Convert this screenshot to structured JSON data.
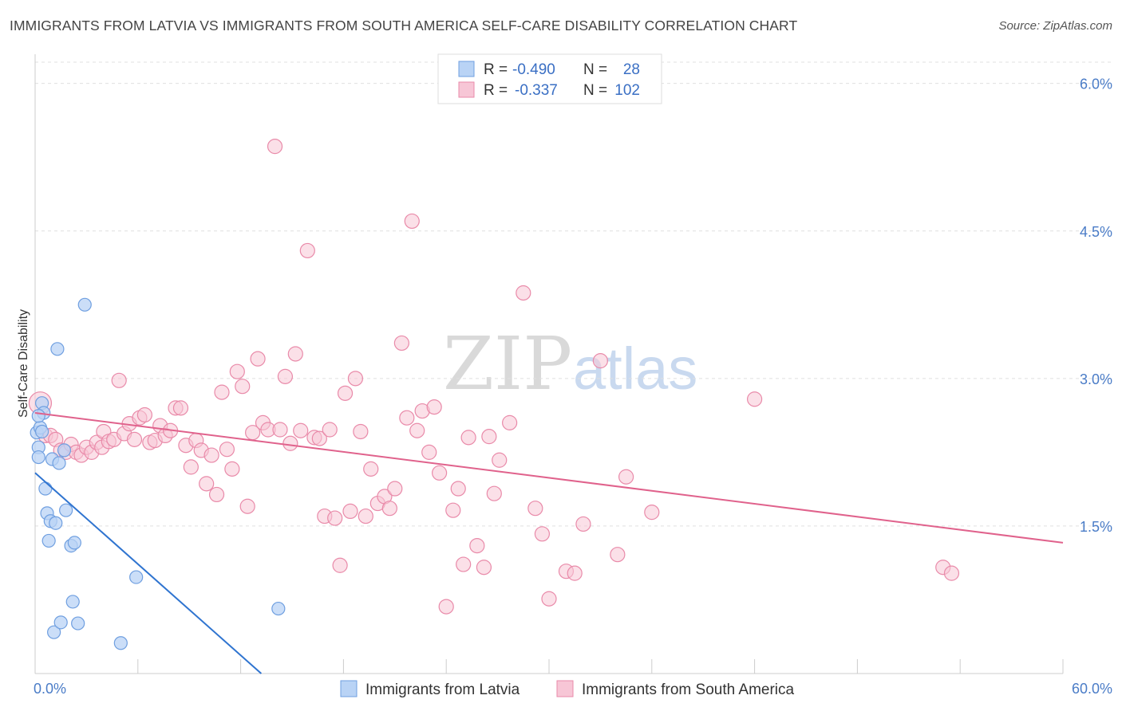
{
  "header": {
    "title": "IMMIGRANTS FROM LATVIA VS IMMIGRANTS FROM SOUTH AMERICA SELF-CARE DISABILITY CORRELATION CHART",
    "source": "Source: ZipAtlas.com"
  },
  "watermark": {
    "zip": "ZIP",
    "atlas": "atlas"
  },
  "colors": {
    "latvia_fill": "#b9d3f5",
    "latvia_stroke": "#6f9fe0",
    "latvia_line": "#2f74d0",
    "south_america_fill": "#f7c6d6",
    "south_america_stroke": "#e98aa9",
    "south_america_line": "#e0628c",
    "tick_label": "#4a7cc7",
    "grid": "#e0e0e0"
  },
  "stats_legend": {
    "rows": [
      {
        "r_label": "R = ",
        "r_value": "-0.490",
        "n_label": "N = ",
        "n_value": "28"
      },
      {
        "r_label": "R = ",
        "r_value": "-0.337",
        "n_label": "N = ",
        "n_value": "102"
      }
    ]
  },
  "chart_data": {
    "type": "scatter",
    "title": "IMMIGRANTS FROM LATVIA VS IMMIGRANTS FROM SOUTH AMERICA SELF-CARE DISABILITY CORRELATION CHART",
    "xlabel": "",
    "ylabel": "Self-Care Disability",
    "xlim": [
      0,
      60
    ],
    "ylim": [
      0,
      6.2
    ],
    "x_tick_labels": {
      "min": "0.0%",
      "max": "60.0%"
    },
    "x_minor_ticks": [
      6,
      12,
      18,
      24,
      30,
      36,
      42,
      48,
      54,
      60
    ],
    "y_ticks": [
      1.5,
      3.0,
      4.5,
      6.0
    ],
    "y_tick_labels": [
      "1.5%",
      "3.0%",
      "4.5%",
      "6.0%"
    ],
    "grid": true,
    "legend_position": "bottom",
    "series": [
      {
        "name": "Immigrants from Latvia",
        "color": "#6f9fe0",
        "trendline": {
          "x": [
            0,
            13.2
          ],
          "y": [
            2.04,
            0.0
          ]
        },
        "points": [
          [
            0.1,
            2.45
          ],
          [
            0.2,
            2.3
          ],
          [
            0.2,
            2.2
          ],
          [
            0.3,
            2.5
          ],
          [
            0.4,
            2.46
          ],
          [
            0.4,
            2.75
          ],
          [
            0.5,
            2.65
          ],
          [
            0.6,
            1.88
          ],
          [
            0.7,
            1.63
          ],
          [
            0.8,
            1.35
          ],
          [
            0.9,
            1.55
          ],
          [
            1.0,
            2.18
          ],
          [
            1.1,
            0.42
          ],
          [
            1.2,
            1.53
          ],
          [
            1.3,
            3.3
          ],
          [
            1.4,
            2.14
          ],
          [
            1.5,
            0.52
          ],
          [
            1.7,
            2.27
          ],
          [
            1.8,
            1.66
          ],
          [
            2.1,
            1.3
          ],
          [
            2.2,
            0.73
          ],
          [
            2.3,
            1.33
          ],
          [
            2.5,
            0.51
          ],
          [
            2.9,
            3.75
          ],
          [
            5.0,
            0.31
          ],
          [
            5.9,
            0.98
          ],
          [
            14.2,
            0.66
          ],
          [
            0.2,
            2.62
          ]
        ]
      },
      {
        "name": "Immigrants from South America",
        "color": "#e98aa9",
        "trendline": {
          "x": [
            0,
            60
          ],
          "y": [
            2.65,
            1.33
          ]
        },
        "points": [
          [
            0.3,
            2.75
          ],
          [
            0.6,
            2.42
          ],
          [
            0.9,
            2.42
          ],
          [
            1.2,
            2.38
          ],
          [
            1.5,
            2.27
          ],
          [
            1.8,
            2.25
          ],
          [
            2.1,
            2.33
          ],
          [
            2.4,
            2.25
          ],
          [
            2.7,
            2.22
          ],
          [
            3.0,
            2.3
          ],
          [
            3.3,
            2.25
          ],
          [
            3.6,
            2.35
          ],
          [
            3.9,
            2.3
          ],
          [
            4.0,
            2.46
          ],
          [
            4.3,
            2.36
          ],
          [
            4.6,
            2.38
          ],
          [
            4.9,
            2.98
          ],
          [
            5.2,
            2.44
          ],
          [
            5.5,
            2.54
          ],
          [
            5.8,
            2.38
          ],
          [
            6.1,
            2.6
          ],
          [
            6.4,
            2.63
          ],
          [
            6.7,
            2.35
          ],
          [
            7.0,
            2.37
          ],
          [
            7.3,
            2.52
          ],
          [
            7.6,
            2.42
          ],
          [
            7.9,
            2.47
          ],
          [
            8.2,
            2.7
          ],
          [
            8.5,
            2.7
          ],
          [
            8.8,
            2.32
          ],
          [
            9.1,
            2.1
          ],
          [
            9.4,
            2.37
          ],
          [
            9.7,
            2.27
          ],
          [
            10.0,
            1.93
          ],
          [
            10.3,
            2.22
          ],
          [
            10.6,
            1.82
          ],
          [
            10.9,
            2.86
          ],
          [
            11.2,
            2.28
          ],
          [
            11.5,
            2.08
          ],
          [
            11.8,
            3.07
          ],
          [
            12.1,
            2.92
          ],
          [
            12.4,
            1.7
          ],
          [
            12.7,
            2.45
          ],
          [
            13.0,
            3.2
          ],
          [
            13.3,
            2.55
          ],
          [
            13.6,
            2.48
          ],
          [
            14.0,
            5.36
          ],
          [
            14.3,
            2.48
          ],
          [
            14.6,
            3.02
          ],
          [
            14.9,
            2.34
          ],
          [
            15.2,
            3.25
          ],
          [
            15.5,
            2.47
          ],
          [
            15.9,
            4.3
          ],
          [
            16.3,
            2.4
          ],
          [
            16.6,
            2.39
          ],
          [
            16.9,
            1.6
          ],
          [
            17.2,
            2.48
          ],
          [
            17.5,
            1.58
          ],
          [
            17.8,
            1.1
          ],
          [
            18.1,
            2.85
          ],
          [
            18.4,
            1.65
          ],
          [
            18.7,
            3.0
          ],
          [
            19.0,
            2.46
          ],
          [
            19.3,
            1.6
          ],
          [
            19.6,
            2.08
          ],
          [
            20.0,
            1.73
          ],
          [
            20.4,
            1.8
          ],
          [
            20.7,
            1.68
          ],
          [
            21.0,
            1.88
          ],
          [
            21.4,
            3.36
          ],
          [
            21.7,
            2.6
          ],
          [
            22.0,
            4.6
          ],
          [
            22.3,
            2.47
          ],
          [
            22.6,
            2.67
          ],
          [
            23.0,
            2.25
          ],
          [
            23.3,
            2.71
          ],
          [
            23.6,
            2.04
          ],
          [
            24.0,
            0.68
          ],
          [
            24.4,
            1.66
          ],
          [
            24.7,
            1.88
          ],
          [
            25.0,
            1.11
          ],
          [
            25.3,
            2.4
          ],
          [
            25.8,
            1.3
          ],
          [
            26.2,
            1.08
          ],
          [
            26.5,
            2.41
          ],
          [
            26.8,
            1.83
          ],
          [
            27.1,
            2.17
          ],
          [
            27.7,
            2.55
          ],
          [
            28.5,
            3.87
          ],
          [
            29.2,
            1.68
          ],
          [
            29.6,
            1.42
          ],
          [
            30.0,
            0.76
          ],
          [
            31.0,
            1.04
          ],
          [
            31.5,
            1.02
          ],
          [
            32.0,
            1.52
          ],
          [
            33.0,
            3.18
          ],
          [
            34.0,
            1.21
          ],
          [
            36.0,
            1.64
          ],
          [
            42.0,
            2.79
          ],
          [
            53.0,
            1.08
          ],
          [
            53.5,
            1.02
          ],
          [
            34.5,
            2.0
          ]
        ]
      }
    ]
  },
  "bottom_legend": {
    "items": [
      {
        "label": "Immigrants from Latvia"
      },
      {
        "label": "Immigrants from South America"
      }
    ]
  }
}
